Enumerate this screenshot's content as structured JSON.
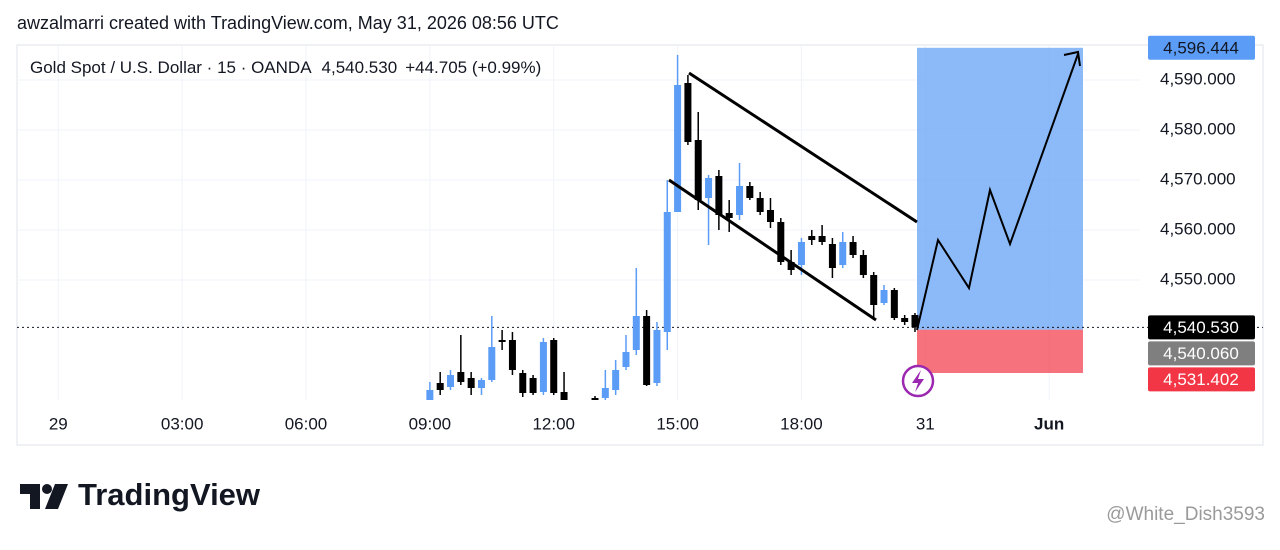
{
  "header": {
    "credit": "awzalmarri created with TradingView.com, May 31, 2026 08:56 UTC",
    "symbol": "Gold Spot / U.S. Dollar · 15 · OANDA",
    "last": "4,540.530",
    "change": "+44.705 (+0.99%)"
  },
  "branding": {
    "logo": "TradingView",
    "watermark": "@White_Dish3593"
  },
  "chart_data": {
    "type": "candlestick",
    "x": [
      9,
      9.25,
      9.5,
      9.75,
      10,
      10.25,
      10.5,
      10.75,
      11,
      11.25,
      11.5,
      11.75,
      12,
      12.25,
      13,
      13.25,
      13.5,
      13.75,
      14,
      14.25,
      14.5,
      14.75,
      15,
      15.25,
      15.5,
      15.75,
      16,
      16.25,
      16.5,
      16.75,
      17,
      17.25,
      17.5,
      17.75,
      18,
      18.25,
      18.5,
      18.75,
      19,
      19.25,
      19.5,
      19.75,
      20,
      20.25,
      20.5,
      20.75
    ],
    "open": [
      4526,
      4529.4,
      4528.6,
      4531.6,
      4530.4,
      4528.4,
      4530,
      4538,
      4538,
      4531.4,
      4530.4,
      4527.6,
      4538,
      4527.6,
      4526.4,
      4526.4,
      4528,
      4532.6,
      4536,
      4542.8,
      4529.4,
      4539.6,
      4563.6,
      4589.4,
      4578,
      4566.4,
      4570.8,
      4563.4,
      4563,
      4568.8,
      4566.4,
      4564,
      4561.6,
      4553.6,
      4553,
      4558.8,
      4558.8,
      4557.2,
      4553,
      4557.6,
      4555,
      4551,
      4545.4,
      4548,
      4542.4,
      4543
    ],
    "high": [
      4529.6,
      4531.6,
      4532,
      4539,
      4531.6,
      4530.4,
      4542.8,
      4540,
      4539.6,
      4532,
      4531,
      4538.4,
      4538.4,
      4531.6,
      4526.8,
      4532,
      4534,
      4539,
      4552.4,
      4544,
      4541.6,
      4570,
      4595,
      4591,
      4583.6,
      4571,
      4572,
      4566,
      4573.4,
      4569.6,
      4567.6,
      4566.4,
      4562.4,
      4556,
      4558.4,
      4560,
      4561,
      4558.4,
      4559.6,
      4558.8,
      4556,
      4551.6,
      4549,
      4548.4,
      4543,
      4543.4
    ],
    "low": [
      4526,
      4527,
      4528,
      4529,
      4527,
      4527,
      4529.6,
      4536,
      4531,
      4526.6,
      4527,
      4527,
      4527,
      4526,
      4526,
      4526,
      4527,
      4532,
      4535,
      4528.8,
      4528.8,
      4536,
      4563.6,
      4577,
      4564,
      4557,
      4560,
      4559.6,
      4562,
      4566,
      4563,
      4560.4,
      4553,
      4551,
      4551,
      4557,
      4557,
      4550.4,
      4552.4,
      4554.4,
      4550.4,
      4542,
      4545,
      4542,
      4541,
      4539.6
    ],
    "close": [
      4528,
      4528,
      4531,
      4529.6,
      4528.4,
      4530,
      4536.6,
      4537.6,
      4532,
      4527.4,
      4527.4,
      4537.6,
      4527.4,
      4526,
      4526,
      4528.4,
      4532,
      4535.6,
      4542.8,
      4529,
      4540,
      4563.6,
      4589,
      4577.6,
      4566,
      4570.4,
      4563,
      4562.4,
      4568.8,
      4566.4,
      4563.6,
      4561.6,
      4553.6,
      4552,
      4557.6,
      4558,
      4557.6,
      4552.4,
      4557.6,
      4555,
      4551,
      4545,
      4548,
      4542.4,
      4541.6,
      4540.53
    ],
    "up_color": "#5b9cf6",
    "down_color": "#000000",
    "xlim": [
      -1,
      26.2
    ],
    "ylim": [
      4526,
      4597
    ],
    "xticks": [
      {
        "value": 0,
        "label": "29"
      },
      {
        "value": 3,
        "label": "03:00"
      },
      {
        "value": 6,
        "label": "06:00"
      },
      {
        "value": 9,
        "label": "09:00"
      },
      {
        "value": 12,
        "label": "12:00"
      },
      {
        "value": 15,
        "label": "15:00"
      },
      {
        "value": 18,
        "label": "18:00"
      },
      {
        "value": 21,
        "label": "31"
      },
      {
        "value": 24,
        "label": "Jun"
      }
    ],
    "yticks": [
      {
        "value": 4550,
        "label": "4,550.000"
      },
      {
        "value": 4560,
        "label": "4,560.000"
      },
      {
        "value": 4570,
        "label": "4,570.000"
      },
      {
        "value": 4580,
        "label": "4,580.000"
      },
      {
        "value": 4590,
        "label": "4,590.000"
      }
    ],
    "grid": true,
    "position": {
      "target": {
        "value": 4596.444,
        "label": "4,596.444",
        "color": "#5b9cf6"
      },
      "last": {
        "value": 4540.53,
        "label": "4,540.530",
        "color": "#000000"
      },
      "entry": {
        "value": 4540.06,
        "label": "4,540.060",
        "color": "#7f7f7f"
      },
      "stop": {
        "value": 4531.402,
        "label": "4,531.402",
        "color": "#f23645"
      }
    }
  }
}
